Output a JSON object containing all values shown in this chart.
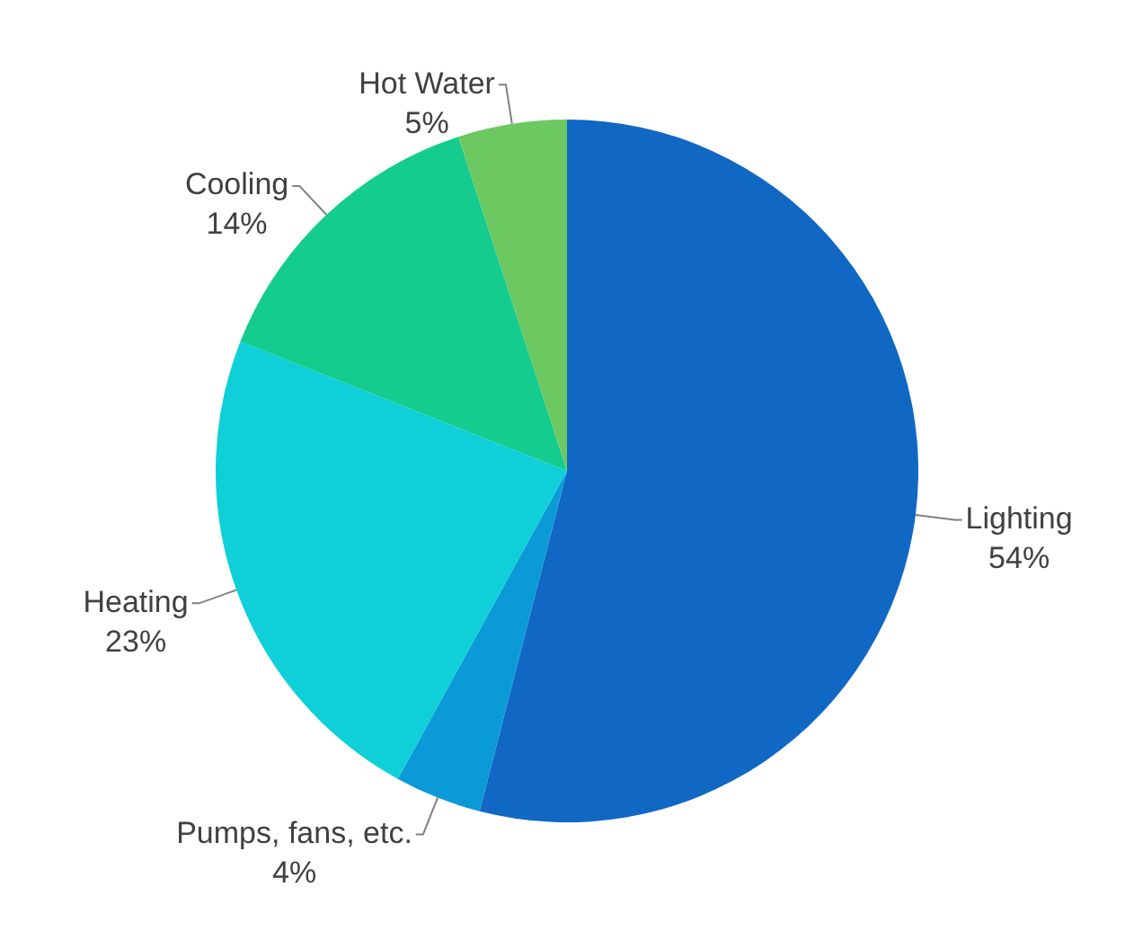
{
  "chart_data": {
    "type": "pie",
    "categories": [
      "Lighting",
      "Pumps, fans, etc.",
      "Heating",
      "Cooling",
      "Hot Water"
    ],
    "values": [
      54,
      4,
      23,
      14,
      5
    ],
    "colors": [
      "#1068c4",
      "#0a9ad8",
      "#0fd0d8",
      "#13cc8e",
      "#6cc860"
    ],
    "value_labels": [
      "54%",
      "4%",
      "23%",
      "14%",
      "5%"
    ]
  }
}
